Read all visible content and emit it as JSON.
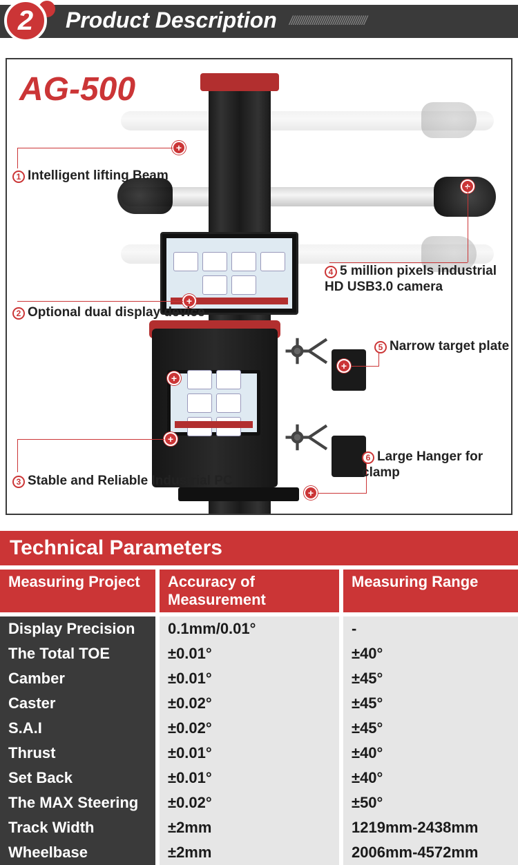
{
  "header": {
    "number": "2",
    "title": "Product Description"
  },
  "product": {
    "model": "AG-500",
    "callouts": [
      {
        "n": "1",
        "label": "Intelligent lifting Beam"
      },
      {
        "n": "2",
        "label": "Optional dual display device"
      },
      {
        "n": "3",
        "label": "Stable and Reliable Industrial PC"
      },
      {
        "n": "4",
        "label": "5 million pixels industrial\nHD USB3.0 camera"
      },
      {
        "n": "5",
        "label": "Narrow target plate"
      },
      {
        "n": "6",
        "label": "Large Hanger for clamp"
      }
    ]
  },
  "params": {
    "title": "Technical Parameters",
    "headers": [
      "Measuring Project",
      "Accuracy of Measurement",
      "Measuring Range"
    ],
    "rows": [
      [
        "Display Precision",
        "0.1mm/0.01°",
        "-"
      ],
      [
        "The Total TOE",
        "±0.01°",
        "±40°"
      ],
      [
        "Camber",
        "±0.01°",
        "±45°"
      ],
      [
        "Caster",
        "±0.02°",
        "±45°"
      ],
      [
        "S.A.I",
        "±0.02°",
        "±45°"
      ],
      [
        "Thrust",
        "±0.01°",
        "±40°"
      ],
      [
        "Set Back",
        "±0.01°",
        "±40°"
      ],
      [
        "The MAX Steering",
        "±0.02°",
        "±50°"
      ],
      [
        "Track Width",
        "±2mm",
        "1219mm-2438mm"
      ],
      [
        "Wheelbase",
        "±2mm",
        "2006mm-4572mm"
      ]
    ]
  },
  "colors": {
    "accent": "#cb3536",
    "dark": "#3a3a3a"
  }
}
